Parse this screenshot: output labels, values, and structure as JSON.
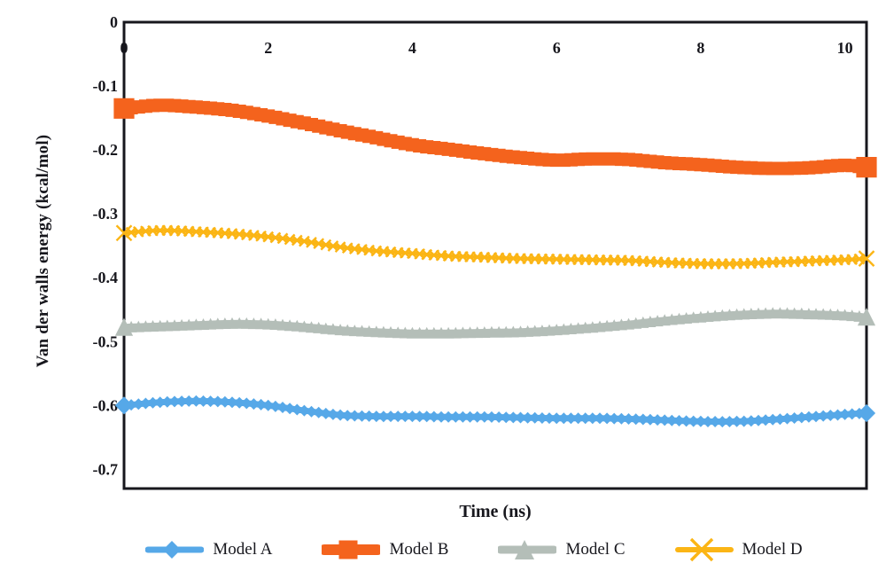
{
  "chart_data": {
    "type": "line",
    "title": "",
    "xlabel": "Time (ns)",
    "ylabel": "Van der walls energy (kcal/mol)",
    "xlim": [
      0,
      10.3
    ],
    "ylim": [
      -0.73,
      0
    ],
    "xticks": [
      0,
      2,
      4,
      6,
      8,
      10
    ],
    "yticks": [
      0,
      -0.1,
      -0.2,
      -0.3,
      -0.4,
      -0.5,
      -0.6,
      -0.7
    ],
    "grid": false,
    "legend_position": "bottom",
    "marker_interval_ns": 0.1,
    "x": [
      0,
      0.5,
      1,
      1.5,
      2,
      2.5,
      3,
      3.5,
      4,
      4.5,
      5,
      5.5,
      6,
      6.5,
      7,
      7.5,
      8,
      8.5,
      9,
      9.5,
      10,
      10.3
    ],
    "series": [
      {
        "name": "Model A",
        "marker": "diamond",
        "color": "#56a8e8",
        "line_width": 7,
        "marker_size": 6.5,
        "values": [
          -0.6,
          -0.595,
          -0.593,
          -0.595,
          -0.6,
          -0.608,
          -0.615,
          -0.617,
          -0.617,
          -0.618,
          -0.618,
          -0.619,
          -0.62,
          -0.62,
          -0.621,
          -0.623,
          -0.625,
          -0.625,
          -0.622,
          -0.618,
          -0.614,
          -0.612
        ]
      },
      {
        "name": "Model B",
        "marker": "square",
        "color": "#f4631d",
        "line_width": 11,
        "marker_size": 7.5,
        "values": [
          -0.135,
          -0.13,
          -0.133,
          -0.138,
          -0.147,
          -0.158,
          -0.17,
          -0.181,
          -0.192,
          -0.199,
          -0.206,
          -0.212,
          -0.216,
          -0.214,
          -0.215,
          -0.22,
          -0.223,
          -0.227,
          -0.229,
          -0.228,
          -0.224,
          -0.227
        ]
      },
      {
        "name": "Model C",
        "marker": "triangle",
        "color": "#b4beb8",
        "line_width": 7,
        "marker_size": 6.5,
        "values": [
          -0.477,
          -0.475,
          -0.473,
          -0.471,
          -0.472,
          -0.476,
          -0.481,
          -0.484,
          -0.486,
          -0.486,
          -0.485,
          -0.484,
          -0.481,
          -0.477,
          -0.472,
          -0.466,
          -0.461,
          -0.457,
          -0.455,
          -0.456,
          -0.458,
          -0.461
        ]
      },
      {
        "name": "Model D",
        "marker": "x",
        "color": "#fbb515",
        "line_width": 4,
        "marker_size": 5.5,
        "values": [
          -0.33,
          -0.326,
          -0.328,
          -0.331,
          -0.336,
          -0.343,
          -0.352,
          -0.358,
          -0.362,
          -0.366,
          -0.368,
          -0.37,
          -0.371,
          -0.372,
          -0.373,
          -0.376,
          -0.378,
          -0.378,
          -0.376,
          -0.374,
          -0.372,
          -0.37
        ]
      }
    ]
  },
  "colors": {
    "axis": "#17171d",
    "tick_text": "#17171d",
    "background": "#ffffff"
  }
}
